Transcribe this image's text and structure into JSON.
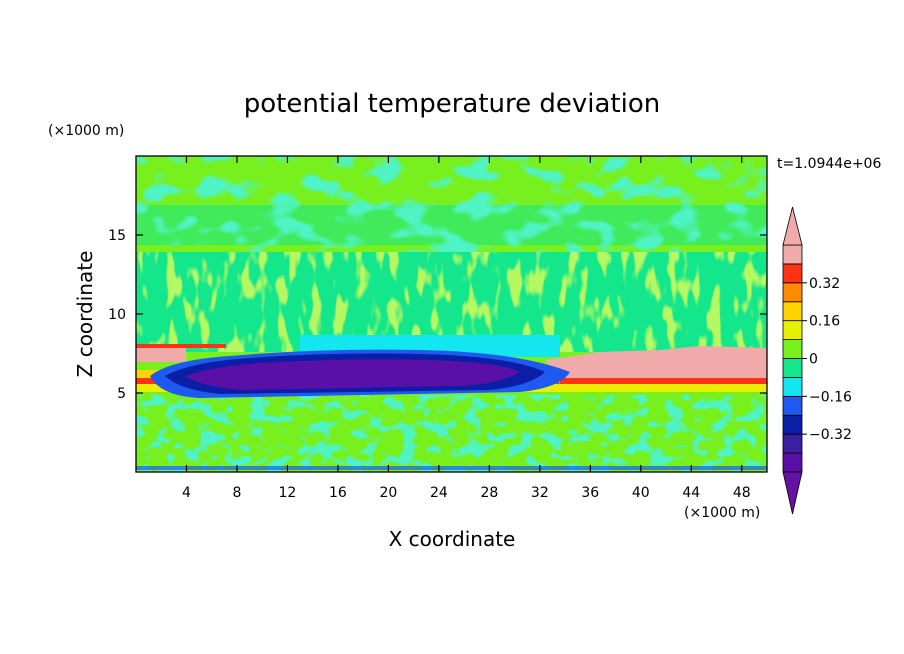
{
  "chart_data": {
    "type": "heatmap",
    "title": "potential temperature deviation",
    "xlabel": "X coordinate",
    "ylabel": "Z coordinate",
    "x_unit": "(×1000 m)",
    "y_unit": "(×1000 m)",
    "time_label": "t=1.0944e+06",
    "xlim": [
      0,
      50
    ],
    "ylim": [
      0,
      20
    ],
    "x_ticks": [
      4,
      8,
      12,
      16,
      20,
      24,
      28,
      32,
      36,
      40,
      44,
      48
    ],
    "y_ticks": [
      5,
      10,
      15
    ],
    "colorbar": {
      "levels": [
        -0.48,
        -0.4,
        -0.32,
        -0.24,
        -0.16,
        -0.08,
        0,
        0.08,
        0.16,
        0.24,
        0.32,
        0.4
      ],
      "labels": [
        -0.32,
        -0.16,
        0,
        0.16,
        0.32
      ],
      "label_text": [
        "−0.32",
        "−0.16",
        "0",
        "0.16",
        "0.32"
      ],
      "colors": [
        "#5a0fa6",
        "#3c1ea0",
        "#0a1ea6",
        "#1e5af0",
        "#14e6f0",
        "#14e68c",
        "#78f01e",
        "#e6f000",
        "#ffd200",
        "#ff8c00",
        "#ff3214",
        "#f0aaaa"
      ],
      "extend_low_color": "#6414a0",
      "extend_high_color": "#f0aaaa"
    },
    "layers": [
      {
        "z_range": [
          14.5,
          20
        ],
        "value": 0.04,
        "description_color": "#78f01e"
      },
      {
        "z_range": [
          7.5,
          14.5
        ],
        "value": 0.0,
        "description_color": "#14e68c"
      },
      {
        "z_range": [
          5,
          7.5
        ],
        "value": -0.4,
        "description_color": "#3c1ea0"
      },
      {
        "z_range": [
          0,
          5
        ],
        "value": 0.0,
        "description_color": "#14e68c"
      }
    ]
  }
}
